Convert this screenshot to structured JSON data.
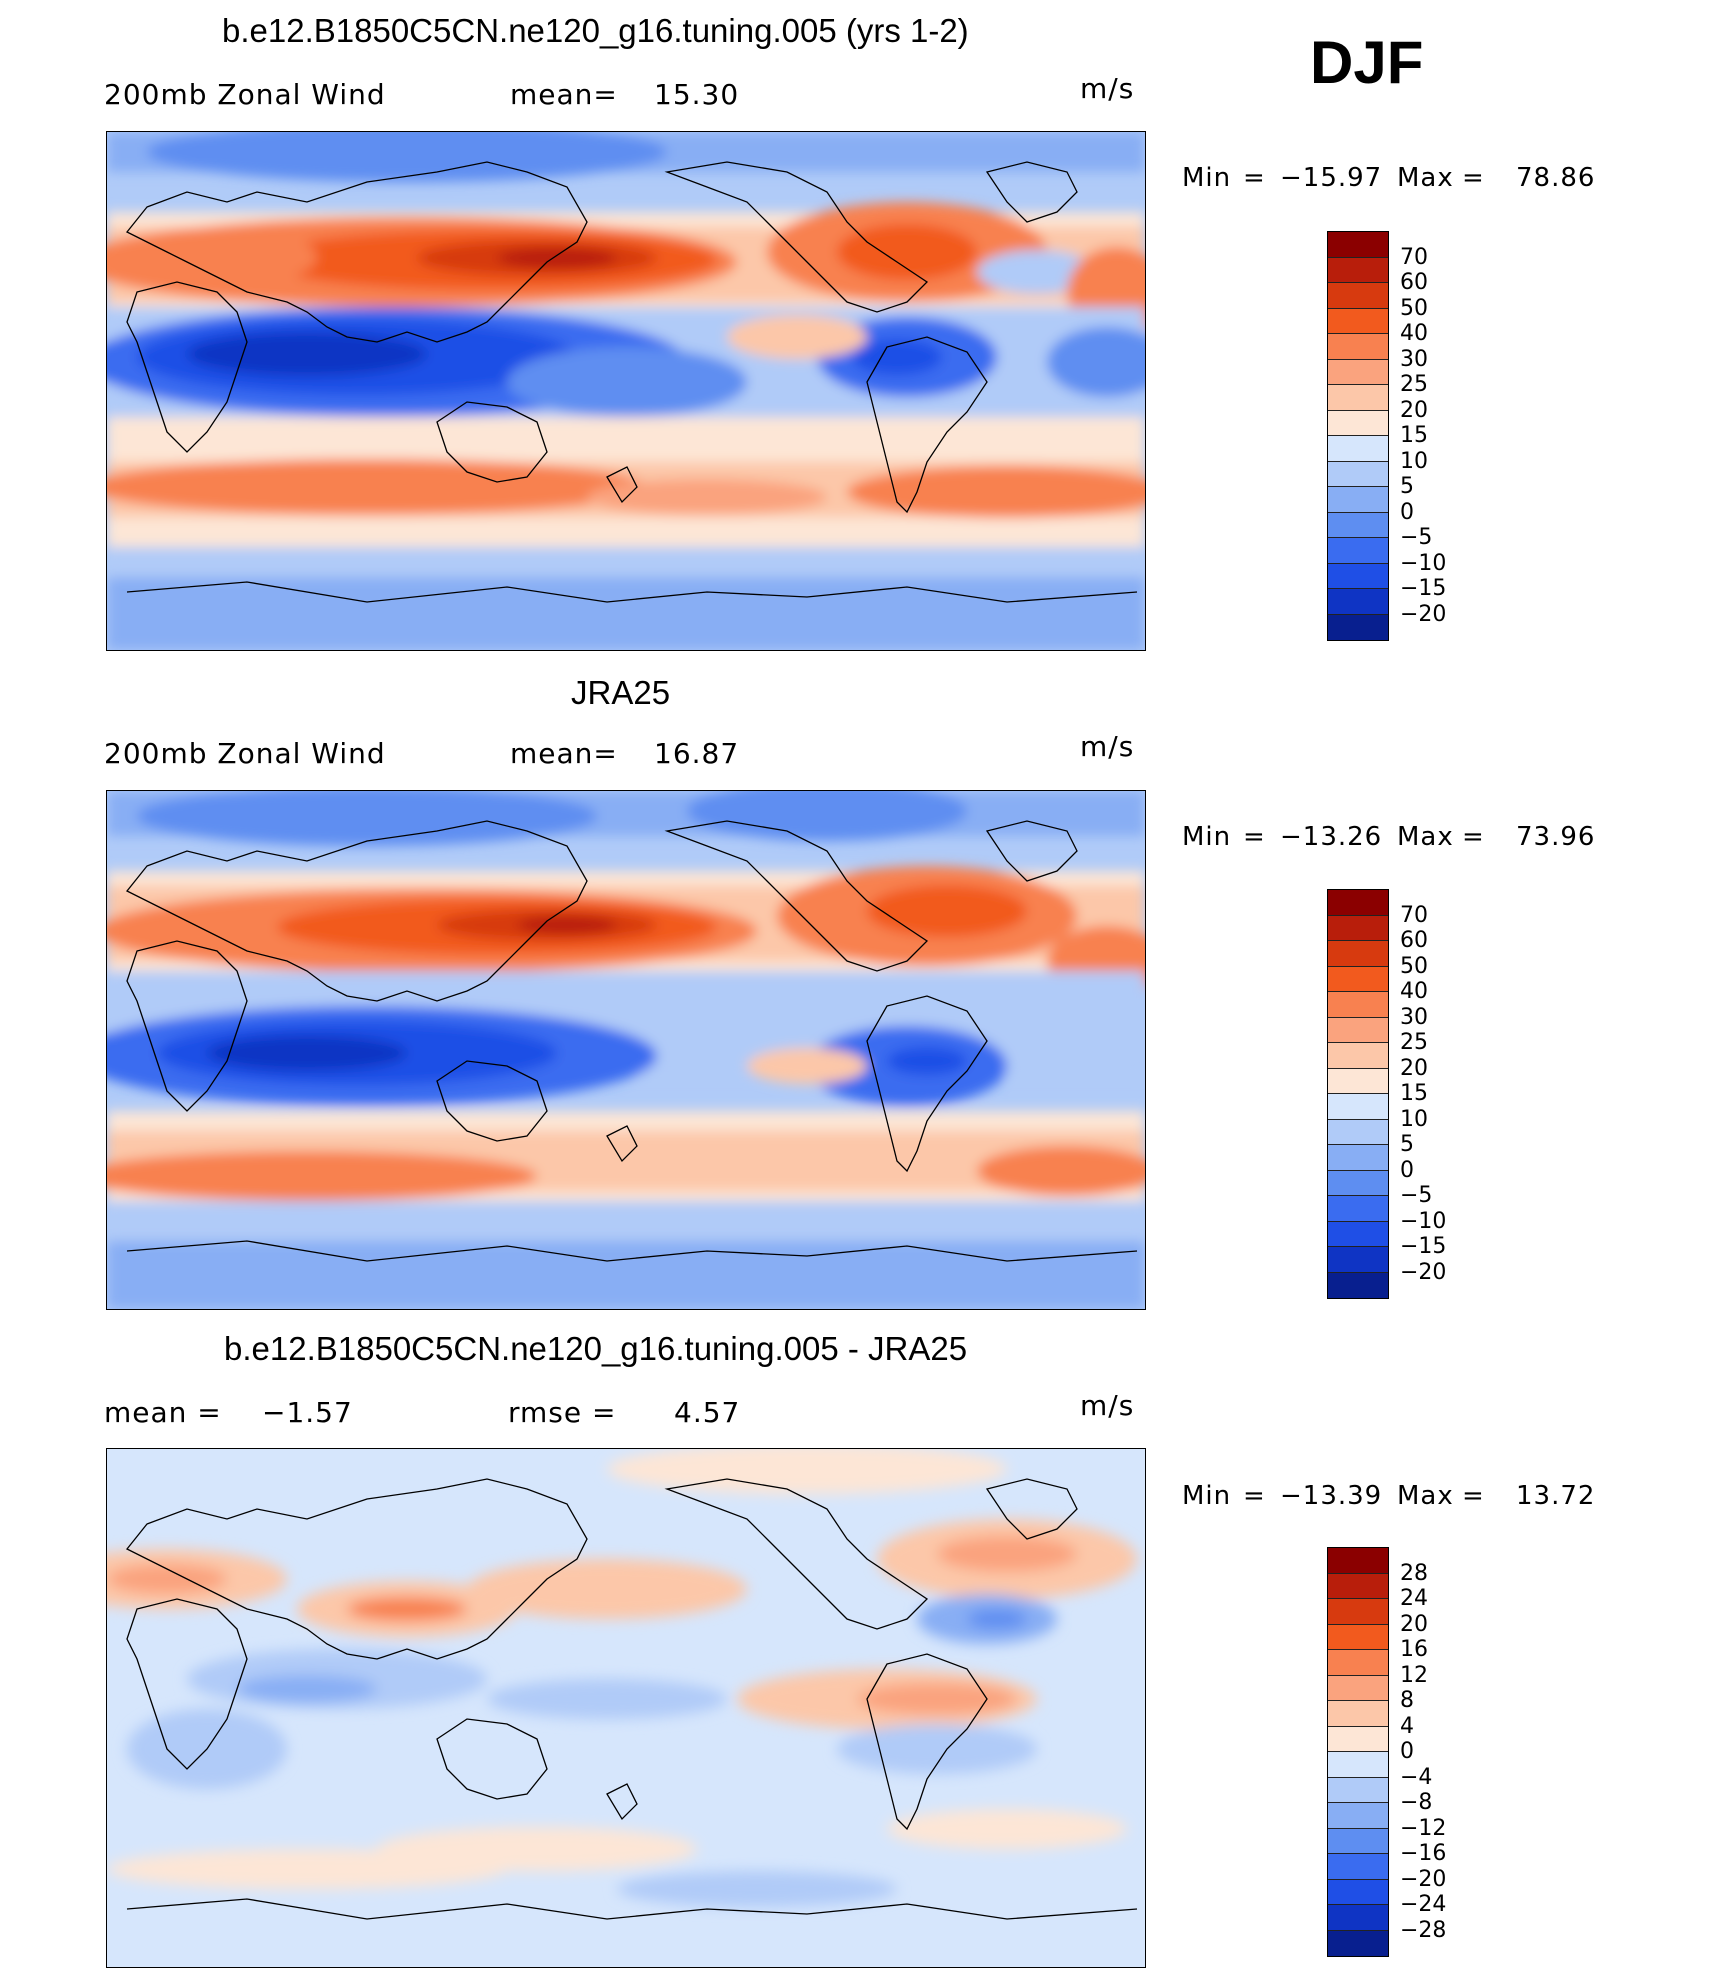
{
  "season": "DJF",
  "colors": {
    "main_scale": [
      "#8b0000",
      "#b81e0b",
      "#d73a0f",
      "#f25a1e",
      "#f88150",
      "#faa37e",
      "#fcc7a9",
      "#fde6d6",
      "#d6e6fc",
      "#b0cbf8",
      "#88aef4",
      "#5e8ef1",
      "#3a6cf0",
      "#1f4fe6",
      "#0f34c4",
      "#081f8f"
    ],
    "diff_scale": [
      "#8b0000",
      "#b81e0b",
      "#d73a0f",
      "#f25a1e",
      "#f88150",
      "#faa37e",
      "#fcc7a9",
      "#fde6d6",
      "#d6e6fc",
      "#b0cbf8",
      "#88aef4",
      "#5e8ef1",
      "#3a6cf0",
      "#1f4fe6",
      "#0f34c4",
      "#081f8f"
    ]
  },
  "panels": [
    {
      "title": "b.e12.B1850C5CN.ne120_g16.tuning.005 (yrs 1-2)",
      "left_label": "200mb Zonal Wind",
      "mid_label": "mean=",
      "mid_value": "15.30",
      "units": "m/s",
      "min_label": "Min",
      "min_value": "−15.97",
      "max_label": "Max",
      "max_value": "78.86",
      "colorbar_labels": [
        "70",
        "60",
        "50",
        "40",
        "30",
        "25",
        "20",
        "15",
        "10",
        "5",
        "0",
        "−5",
        "−10",
        "−15",
        "−20"
      ]
    },
    {
      "title": "JRA25",
      "left_label": "200mb Zonal Wind",
      "mid_label": "mean=",
      "mid_value": "16.87",
      "units": "m/s",
      "min_label": "Min",
      "min_value": "−13.26",
      "max_label": "Max",
      "max_value": "73.96",
      "colorbar_labels": [
        "70",
        "60",
        "50",
        "40",
        "30",
        "25",
        "20",
        "15",
        "10",
        "5",
        "0",
        "−5",
        "−10",
        "−15",
        "−20"
      ]
    },
    {
      "title": "b.e12.B1850C5CN.ne120_g16.tuning.005 - JRA25",
      "left_label": "mean =",
      "left_value": "−1.57",
      "mid_label": "rmse =",
      "mid_value": "4.57",
      "units": "m/s",
      "min_label": "Min",
      "min_value": "−13.39",
      "max_label": "Max",
      "max_value": "13.72",
      "colorbar_labels": [
        "28",
        "24",
        "20",
        "16",
        "12",
        "8",
        "4",
        "0",
        "−4",
        "−8",
        "−12",
        "−16",
        "−20",
        "−24",
        "−28"
      ]
    }
  ]
}
